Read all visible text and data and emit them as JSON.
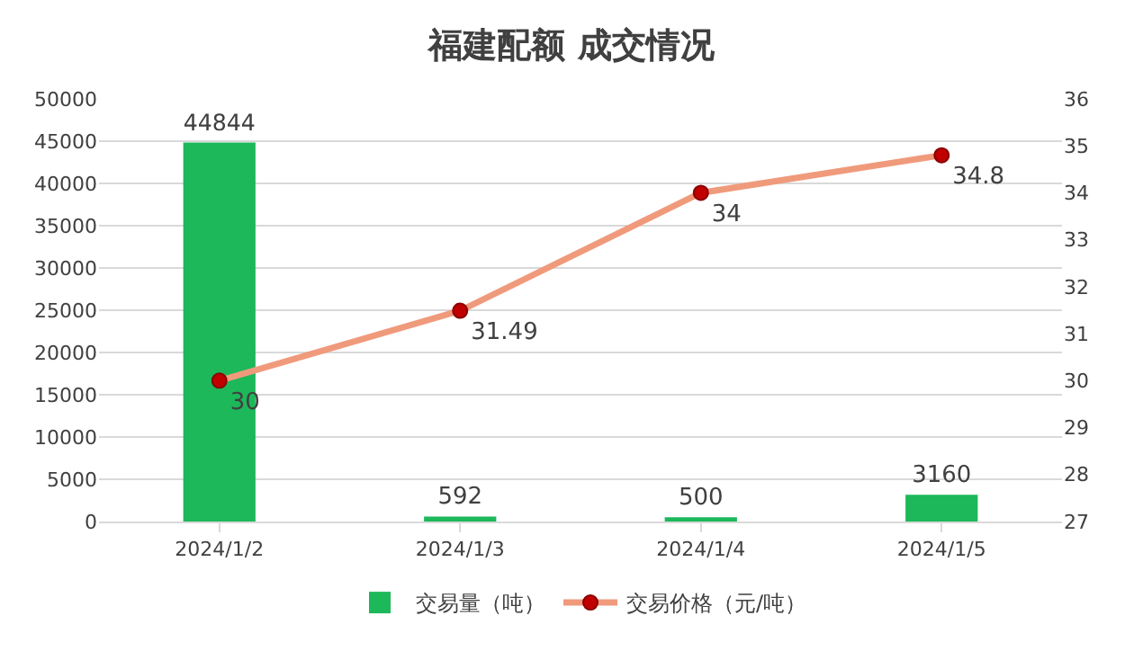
{
  "chart_data": {
    "type": "bar",
    "title": "福建配额 成交情况",
    "categories": [
      "2024/1/2",
      "2024/1/3",
      "2024/1/4",
      "2024/1/5"
    ],
    "series": [
      {
        "name": "交易量（吨）",
        "color": "#1cb85a",
        "values": [
          44844,
          592,
          500,
          3160
        ]
      },
      {
        "name": "交易价格（元/吨）",
        "type": "line",
        "axis": "y2",
        "color": "#f09a7c",
        "marker": "circle",
        "values": [
          30,
          31.49,
          34,
          34.8
        ]
      }
    ],
    "ylim": [
      0,
      50000
    ],
    "yticks": [
      0,
      5000,
      10000,
      15000,
      20000,
      25000,
      30000,
      35000,
      40000,
      45000,
      50000
    ],
    "y2lim": [
      27,
      36
    ],
    "y2ticks": [
      27,
      28,
      29,
      30,
      31,
      32,
      33,
      34,
      35,
      36
    ],
    "data_labels": true,
    "grid": "y",
    "legend": "bottom"
  }
}
